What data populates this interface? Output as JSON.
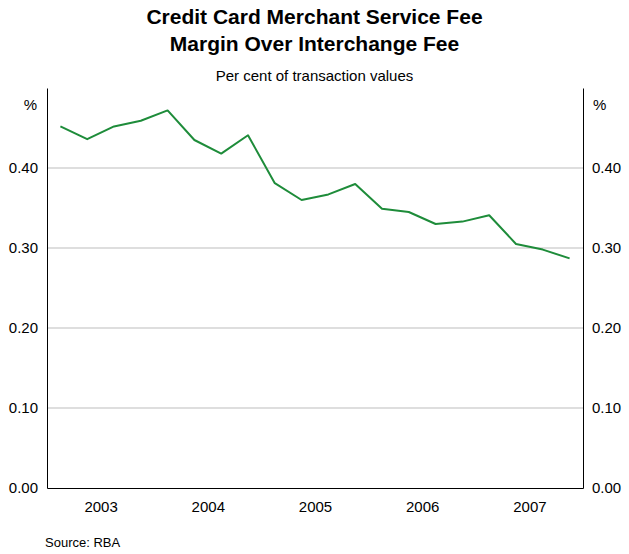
{
  "chart_data": {
    "type": "line",
    "title": [
      "Credit Card Merchant Service Fee",
      "Margin Over Interchange Fee"
    ],
    "subtitle": "Per cent of transaction values",
    "ylabel": "%",
    "source": "Source: RBA",
    "x": [
      2003.125,
      2003.375,
      2003.625,
      2003.875,
      2004.125,
      2004.375,
      2004.625,
      2004.875,
      2005.125,
      2005.375,
      2005.625,
      2005.875,
      2006.125,
      2006.375,
      2006.625,
      2006.875,
      2007.125,
      2007.375,
      2007.625,
      2007.875
    ],
    "values": [
      0.452,
      0.436,
      0.452,
      0.459,
      0.472,
      0.435,
      0.418,
      0.441,
      0.381,
      0.36,
      0.367,
      0.38,
      0.349,
      0.345,
      0.33,
      0.333,
      0.341,
      0.305,
      0.298,
      0.287
    ],
    "color": "#1e8c3a",
    "xlim": [
      2003,
      2008
    ],
    "xticks": [
      {
        "value": 2003.5,
        "label": "2003"
      },
      {
        "value": 2004.5,
        "label": "2004"
      },
      {
        "value": 2005.5,
        "label": "2005"
      },
      {
        "value": 2006.5,
        "label": "2006"
      },
      {
        "value": 2007.5,
        "label": "2007"
      }
    ],
    "ylim": [
      0,
      0.5
    ],
    "yticks": [
      {
        "value": 0,
        "label": "0.00"
      },
      {
        "value": 0.1,
        "label": "0.10"
      },
      {
        "value": 0.2,
        "label": "0.20"
      },
      {
        "value": 0.3,
        "label": "0.30"
      },
      {
        "value": 0.4,
        "label": "0.40"
      }
    ],
    "grid": true
  }
}
